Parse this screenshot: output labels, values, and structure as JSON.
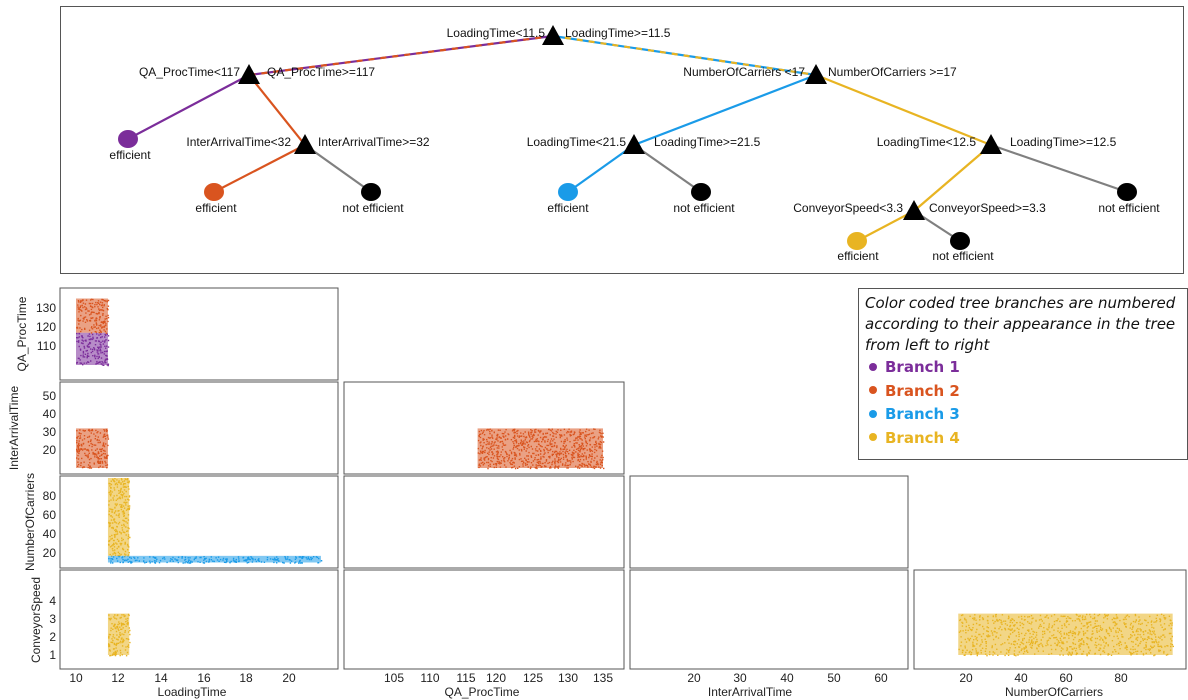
{
  "colors": {
    "branch1": "#7b2d9a",
    "branch2": "#d9541f",
    "branch3": "#1a9be8",
    "branch4": "#e8b422",
    "default": "#808080",
    "black": "#000000"
  },
  "tree": {
    "root": {
      "left": "LoadingTime<11.5",
      "right": "LoadingTime>=11.5"
    },
    "qa": {
      "left": "QA_ProcTime<117",
      "right": "QA_ProcTime>=117"
    },
    "carriers": {
      "left": "NumberOfCarriers <17",
      "right": "NumberOfCarriers >=17"
    },
    "inter": {
      "left": "InterArrivalTime<32",
      "right": "InterArrivalTime>=32"
    },
    "lt215": {
      "left": "LoadingTime<21.5",
      "right": "LoadingTime>=21.5"
    },
    "lt125": {
      "left": "LoadingTime<12.5",
      "right": "LoadingTime>=12.5"
    },
    "conv": {
      "left": "ConveyorSpeed<3.3",
      "right": "ConveyorSpeed>=3.3"
    },
    "leaves": {
      "l1": "efficient",
      "l2": "efficient",
      "l3": "not efficient",
      "l4": "efficient",
      "l5": "not efficient",
      "l6": "efficient",
      "l7": "not efficient",
      "l8": "not efficient"
    }
  },
  "legend": {
    "note": "Color coded tree branches are numbered according to their appearance in the tree from left to right",
    "items": [
      "Branch 1",
      "Branch 2",
      "Branch 3",
      "Branch 4"
    ]
  },
  "matrix": {
    "row_labels": [
      "QA_ProcTime",
      "InterArrivalTime",
      "NumberOfCarriers",
      "ConveyorSpeed"
    ],
    "col_labels": [
      "LoadingTime",
      "QA_ProcTime",
      "InterArrivalTime",
      "NumberOfCarriers"
    ],
    "ticks": {
      "LoadingTime_x": [
        "10",
        "12",
        "14",
        "16",
        "18",
        "20"
      ],
      "QA_ProcTime_x": [
        "105",
        "110",
        "115",
        "120",
        "125",
        "130",
        "135"
      ],
      "InterArrivalTime_x": [
        "20",
        "30",
        "40",
        "50",
        "60"
      ],
      "NumberOfCarriers_x": [
        "20",
        "40",
        "60",
        "80"
      ],
      "QA_ProcTime_y": [
        "130",
        "120",
        "110"
      ],
      "InterArrivalTime_y": [
        "50",
        "40",
        "30",
        "20"
      ],
      "NumberOfCarriers_y": [
        "80",
        "60",
        "40",
        "20"
      ],
      "ConveyorSpeed_y": [
        "4",
        "3",
        "2",
        "1"
      ]
    },
    "regions": [
      {
        "name": "branch1-qa-vs-lt",
        "branch": "branch1",
        "xvar": "LoadingTime",
        "yvar": "QA_ProcTime",
        "x": [
          10,
          11.5
        ],
        "y": [
          100,
          117
        ]
      },
      {
        "name": "branch2-qa-vs-lt",
        "branch": "branch2",
        "xvar": "LoadingTime",
        "yvar": "QA_ProcTime",
        "x": [
          10,
          11.5
        ],
        "y": [
          117,
          135
        ]
      },
      {
        "name": "branch2-iat-vs-lt",
        "branch": "branch2",
        "xvar": "LoadingTime",
        "yvar": "InterArrivalTime",
        "x": [
          10,
          11.5
        ],
        "y": [
          10,
          32
        ]
      },
      {
        "name": "branch2-iat-vs-qa",
        "branch": "branch2",
        "xvar": "QA_ProcTime",
        "yvar": "InterArrivalTime",
        "x": [
          117,
          135
        ],
        "y": [
          10,
          32
        ]
      },
      {
        "name": "branch4-noc-vs-lt",
        "branch": "branch4",
        "xvar": "LoadingTime",
        "yvar": "NumberOfCarriers",
        "x": [
          11.5,
          12.5
        ],
        "y": [
          17,
          100
        ]
      },
      {
        "name": "branch3-noc-vs-lt",
        "branch": "branch3",
        "xvar": "LoadingTime",
        "yvar": "NumberOfCarriers",
        "x": [
          11.5,
          21.5
        ],
        "y": [
          10,
          17
        ]
      },
      {
        "name": "branch4-cs-vs-lt",
        "branch": "branch4",
        "xvar": "LoadingTime",
        "yvar": "ConveyorSpeed",
        "x": [
          11.5,
          12.5
        ],
        "y": [
          1,
          3.3
        ]
      },
      {
        "name": "branch4-cs-vs-noc",
        "branch": "branch4",
        "xvar": "NumberOfCarriers",
        "yvar": "ConveyorSpeed",
        "x": [
          17,
          100
        ],
        "y": [
          1,
          3.3
        ]
      }
    ]
  }
}
